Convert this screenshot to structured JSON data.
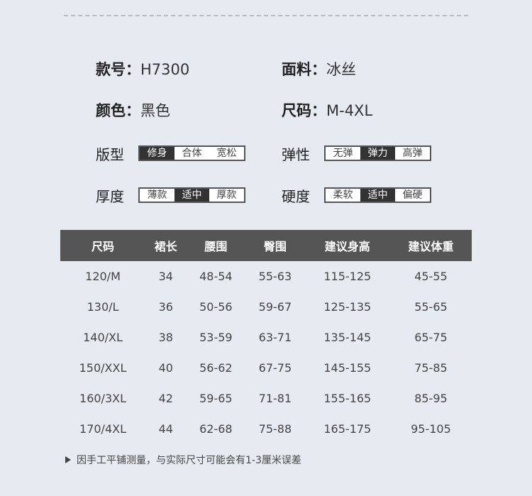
{
  "info": [
    {
      "label": "款号：",
      "value": "H7300"
    },
    {
      "label": "面料：",
      "value": "冰丝"
    },
    {
      "label": "颜色：",
      "value": "黑色"
    },
    {
      "label": "尺码：",
      "value": "M-4XL"
    }
  ],
  "attributes": [
    {
      "label": "版型",
      "options": [
        "修身",
        "合体",
        "宽松"
      ],
      "selected": 0
    },
    {
      "label": "弹性",
      "options": [
        "无弹",
        "弹力",
        "高弹"
      ],
      "selected": 1
    },
    {
      "label": "厚度",
      "options": [
        "薄款",
        "适中",
        "厚款"
      ],
      "selected": 1
    },
    {
      "label": "硬度",
      "options": [
        "柔软",
        "适中",
        "偏硬"
      ],
      "selected": 1
    }
  ],
  "table": {
    "headers": [
      "尺码",
      "裙长",
      "腰围",
      "臀围",
      "建议身高",
      "建议体重"
    ],
    "rows": [
      [
        "120/M",
        "34",
        "48-54",
        "55-63",
        "115-125",
        "45-55"
      ],
      [
        "130/L",
        "36",
        "50-56",
        "59-67",
        "125-135",
        "55-65"
      ],
      [
        "140/XL",
        "38",
        "53-59",
        "63-71",
        "135-145",
        "65-75"
      ],
      [
        "150/XXL",
        "40",
        "56-62",
        "67-75",
        "145-155",
        "75-85"
      ],
      [
        "160/3XL",
        "42",
        "59-65",
        "71-81",
        "155-165",
        "85-95"
      ],
      [
        "170/4XL",
        "44",
        "62-68",
        "75-88",
        "165-175",
        "95-105"
      ]
    ]
  },
  "note": "因手工平铺测量，与实际尺寸可能会有1-3厘米误差"
}
